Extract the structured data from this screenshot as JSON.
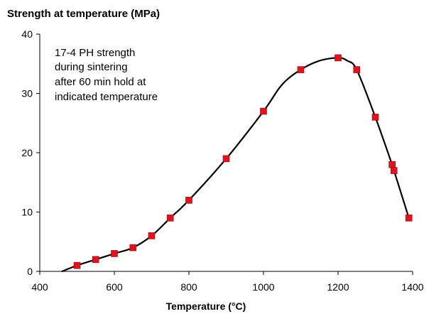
{
  "chart_data": {
    "type": "scatter",
    "ylabel": "Strength at temperature (MPa)",
    "xlabel": "Temperature (°C)",
    "annotation": [
      "17-4 PH strength",
      "during sintering",
      "after 60 min hold at",
      "indicated temperature"
    ],
    "xlim": [
      400,
      1400
    ],
    "ylim": [
      0,
      40
    ],
    "xticks": [
      400,
      600,
      800,
      1000,
      1200,
      1400
    ],
    "yticks": [
      0,
      10,
      20,
      30,
      40
    ],
    "grid": false,
    "marker_color": "#e0141e",
    "curve_color": "#000000",
    "series": [
      {
        "marker": "square",
        "x": [
          500,
          550,
          600,
          650,
          700,
          750,
          800,
          900,
          1000,
          1100,
          1200,
          1250,
          1300,
          1345,
          1350,
          1390
        ],
        "y": [
          1,
          2,
          3,
          4,
          6,
          9,
          12,
          19,
          27,
          34,
          36,
          34,
          26,
          18,
          17,
          9
        ]
      }
    ],
    "fit_curve": {
      "x": [
        460,
        500,
        550,
        600,
        650,
        700,
        750,
        800,
        900,
        1000,
        1050,
        1100,
        1150,
        1200,
        1225,
        1250,
        1300,
        1345,
        1350,
        1390
      ],
      "y": [
        0,
        1,
        2,
        3,
        4,
        6,
        9,
        12,
        19,
        27,
        31.5,
        34,
        35.5,
        36,
        35.5,
        34,
        26,
        18,
        17,
        9
      ]
    }
  }
}
